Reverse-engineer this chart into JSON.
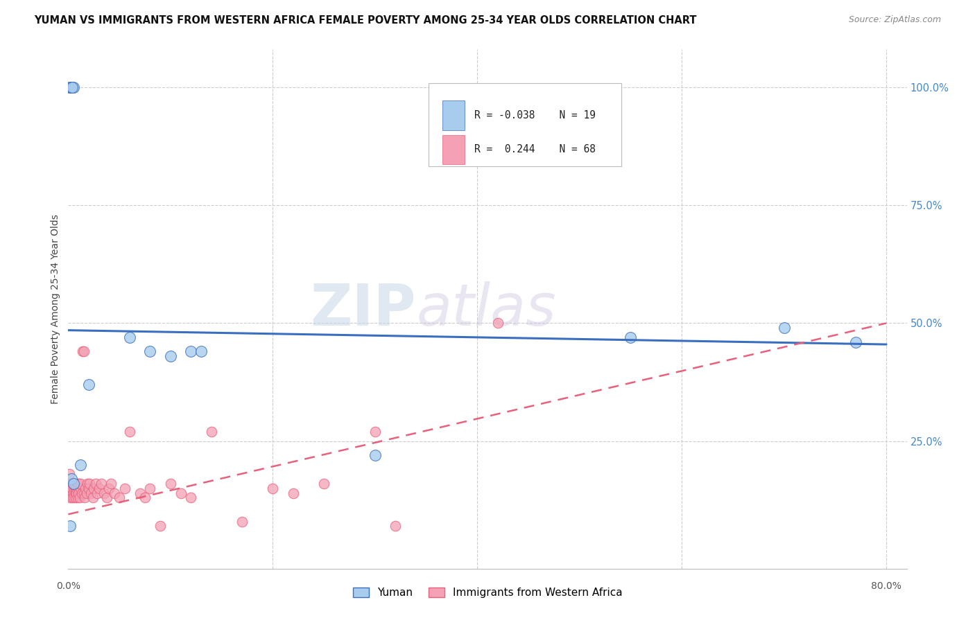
{
  "title": "YUMAN VS IMMIGRANTS FROM WESTERN AFRICA FEMALE POVERTY AMONG 25-34 YEAR OLDS CORRELATION CHART",
  "source": "Source: ZipAtlas.com",
  "ylabel": "Female Poverty Among 25-34 Year Olds",
  "xlim": [
    0.0,
    0.82
  ],
  "ylim": [
    -0.02,
    1.08
  ],
  "ytick_right_labels": [
    "100.0%",
    "75.0%",
    "50.0%",
    "25.0%"
  ],
  "ytick_right_positions": [
    1.0,
    0.75,
    0.5,
    0.25
  ],
  "color_blue": "#A8CCEE",
  "color_pink": "#F4A0B5",
  "color_blue_line": "#3A6EBF",
  "color_pink_line": "#E8607A",
  "watermark_zip": "ZIP",
  "watermark_atlas": "atlas",
  "yuman_x": [
    0.001,
    0.002,
    0.003,
    0.005,
    0.004,
    0.06,
    0.08,
    0.1,
    0.12,
    0.02,
    0.012,
    0.55,
    0.7,
    0.77,
    0.13,
    0.3,
    0.003,
    0.005,
    0.002
  ],
  "yuman_y": [
    1.0,
    1.0,
    1.0,
    1.0,
    1.0,
    0.47,
    0.44,
    0.43,
    0.44,
    0.37,
    0.2,
    0.47,
    0.49,
    0.46,
    0.44,
    0.22,
    0.17,
    0.16,
    0.07
  ],
  "immigrants_x": [
    0.001,
    0.001,
    0.002,
    0.002,
    0.002,
    0.003,
    0.003,
    0.003,
    0.004,
    0.004,
    0.005,
    0.005,
    0.005,
    0.006,
    0.006,
    0.007,
    0.007,
    0.007,
    0.008,
    0.008,
    0.009,
    0.009,
    0.01,
    0.01,
    0.01,
    0.011,
    0.012,
    0.012,
    0.013,
    0.014,
    0.015,
    0.015,
    0.016,
    0.017,
    0.018,
    0.019,
    0.02,
    0.021,
    0.022,
    0.024,
    0.025,
    0.027,
    0.028,
    0.03,
    0.032,
    0.035,
    0.038,
    0.04,
    0.042,
    0.045,
    0.05,
    0.055,
    0.06,
    0.07,
    0.075,
    0.08,
    0.09,
    0.1,
    0.11,
    0.12,
    0.14,
    0.17,
    0.2,
    0.22,
    0.25,
    0.3,
    0.32,
    0.42
  ],
  "immigrants_y": [
    0.18,
    0.15,
    0.16,
    0.14,
    0.13,
    0.15,
    0.16,
    0.14,
    0.15,
    0.13,
    0.16,
    0.14,
    0.13,
    0.15,
    0.16,
    0.14,
    0.15,
    0.13,
    0.15,
    0.14,
    0.16,
    0.13,
    0.15,
    0.14,
    0.16,
    0.13,
    0.15,
    0.16,
    0.14,
    0.44,
    0.44,
    0.14,
    0.13,
    0.15,
    0.14,
    0.16,
    0.15,
    0.16,
    0.14,
    0.13,
    0.15,
    0.16,
    0.14,
    0.15,
    0.16,
    0.14,
    0.13,
    0.15,
    0.16,
    0.14,
    0.13,
    0.15,
    0.27,
    0.14,
    0.13,
    0.15,
    0.07,
    0.16,
    0.14,
    0.13,
    0.27,
    0.08,
    0.15,
    0.14,
    0.16,
    0.27,
    0.07,
    0.5
  ],
  "yuman_line_x": [
    0.0,
    0.8
  ],
  "yuman_line_y": [
    0.485,
    0.455
  ],
  "imm_line_x": [
    0.0,
    0.8
  ],
  "imm_line_y": [
    0.095,
    0.5
  ]
}
